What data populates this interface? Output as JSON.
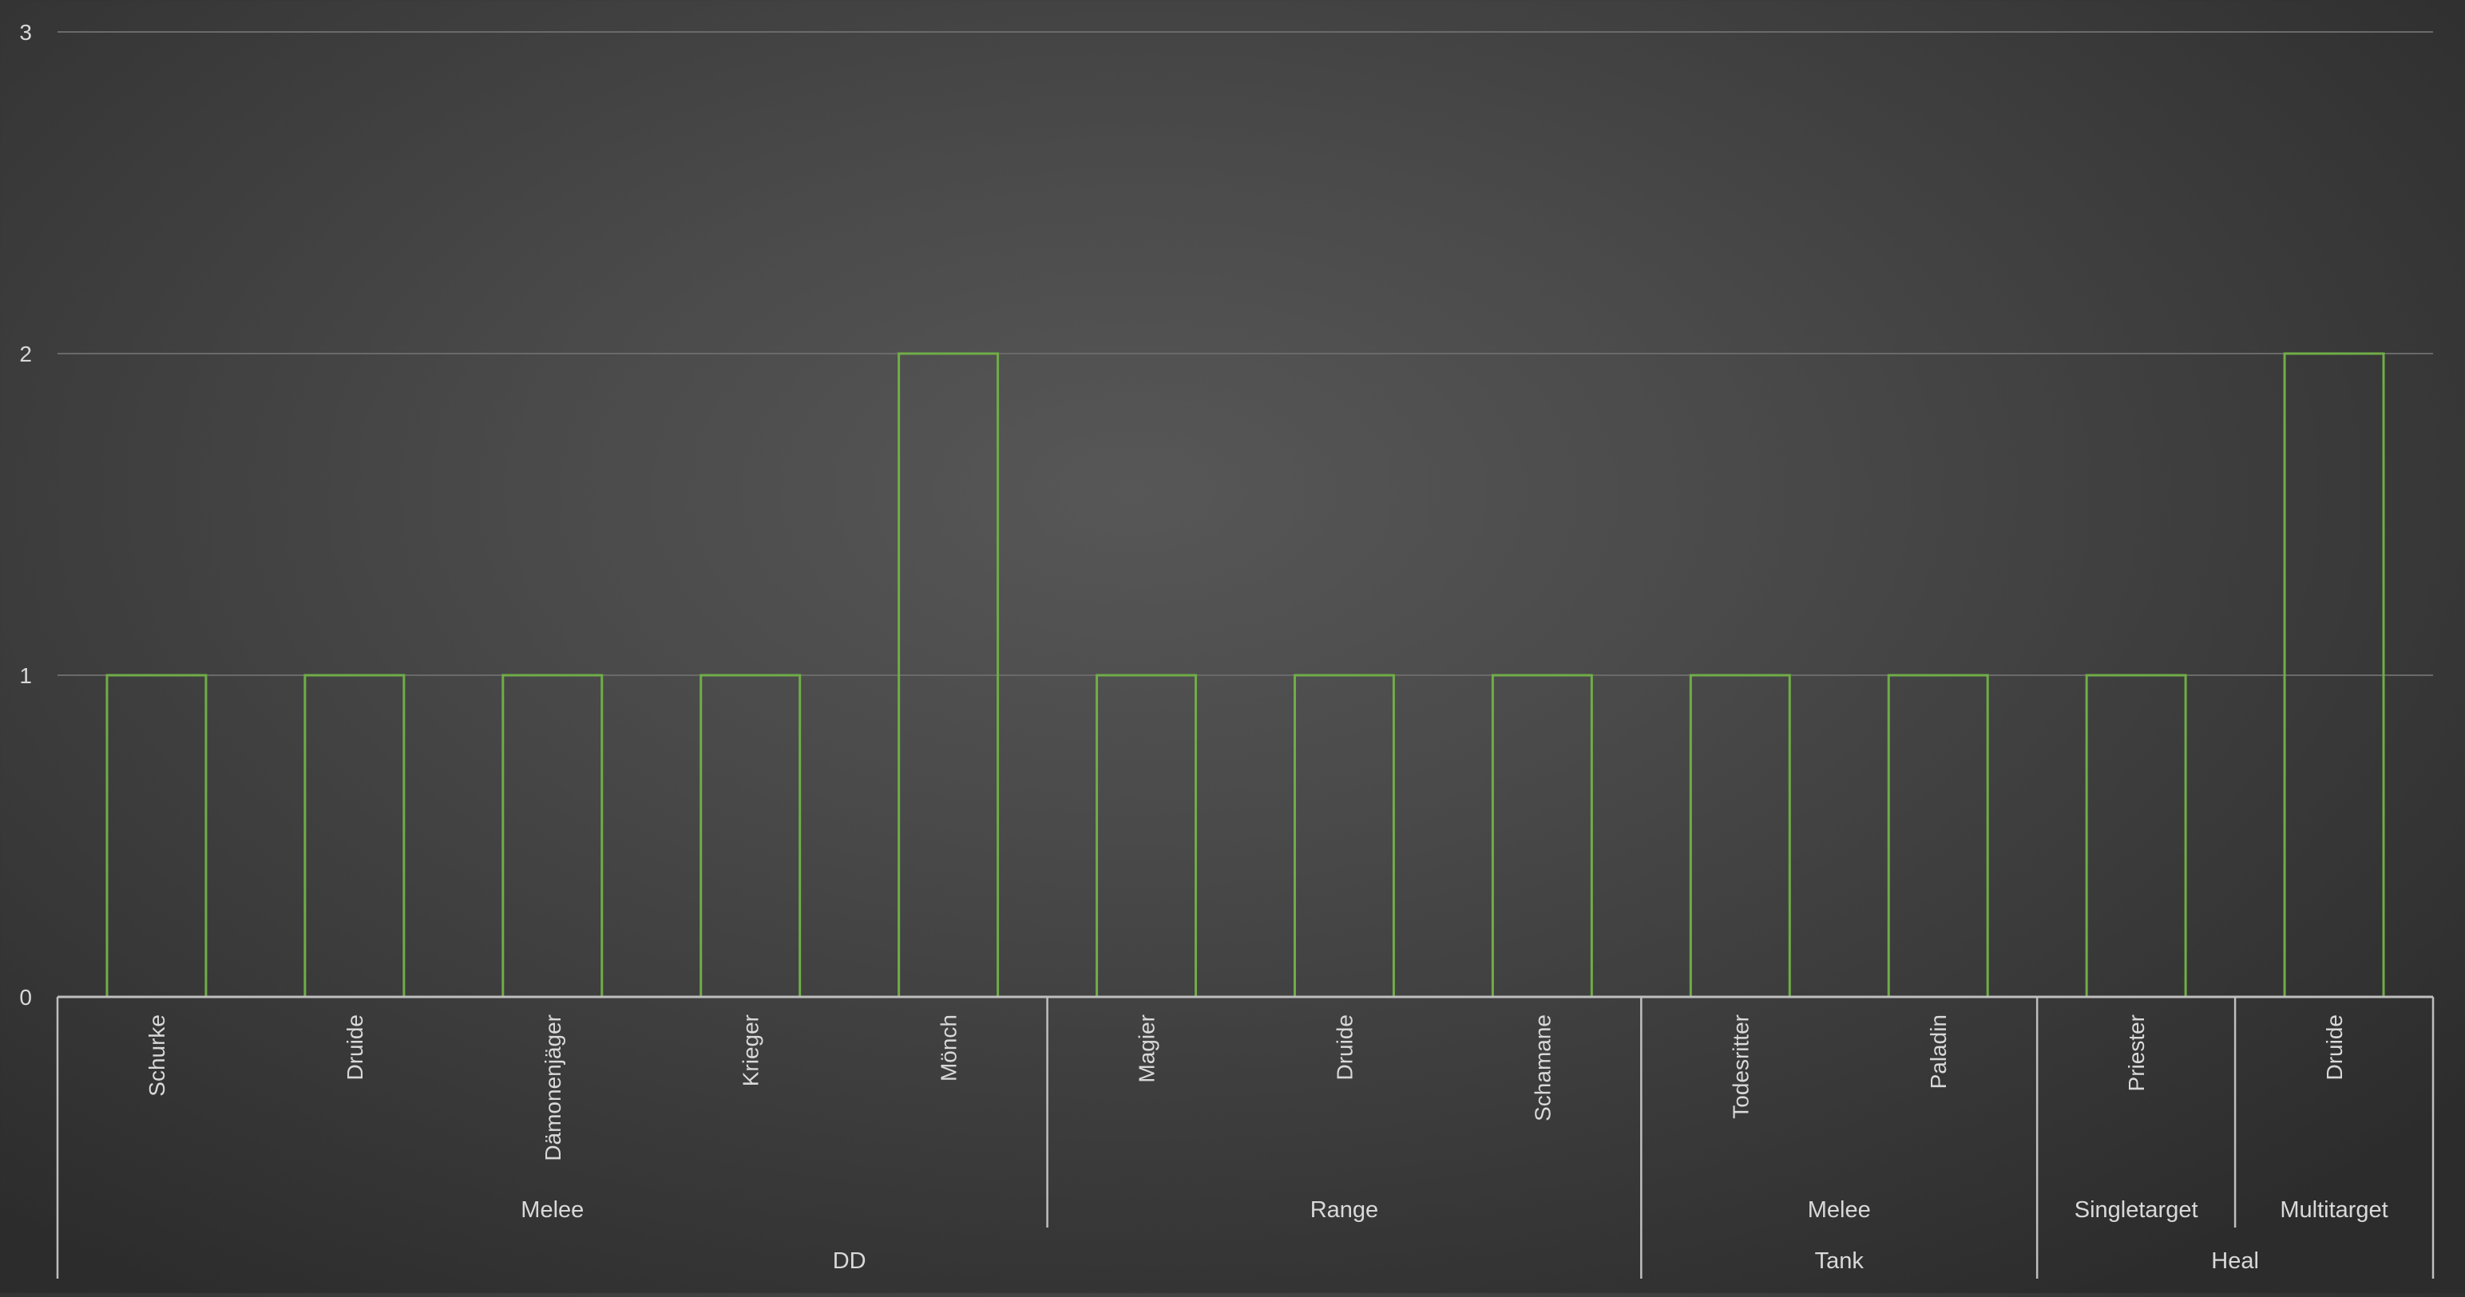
{
  "chart_data": {
    "type": "bar",
    "title": "",
    "xlabel": "",
    "ylabel": "",
    "ylim": [
      0,
      3
    ],
    "yticks": [
      "0",
      "1",
      "2",
      "3"
    ],
    "grid": true,
    "legend": "none",
    "bar_style": "outline",
    "colors": {
      "bar_outline": "#70ad47",
      "text": "#d9d9d9",
      "grid": "#6a6a6a",
      "axis": "#bfbfbf"
    },
    "categories": [
      "Schurke",
      "Druide",
      "Dämonenjäger",
      "Krieger",
      "Mönch",
      "Magier",
      "Druide",
      "Schamane",
      "Todesritter",
      "Paladin",
      "Priester",
      "Druide"
    ],
    "values": [
      1,
      1,
      1,
      1,
      2,
      1,
      1,
      1,
      1,
      1,
      1,
      2
    ],
    "subgroups": [
      {
        "label": "Melee",
        "start": 0,
        "end": 4
      },
      {
        "label": "Range",
        "start": 5,
        "end": 7
      },
      {
        "label": "Melee",
        "start": 8,
        "end": 9
      },
      {
        "label": "Singletarget",
        "start": 10,
        "end": 10
      },
      {
        "label": "Multitarget",
        "start": 11,
        "end": 11
      }
    ],
    "groups": [
      {
        "label": "DD",
        "start": 0,
        "end": 7
      },
      {
        "label": "Tank",
        "start": 8,
        "end": 9
      },
      {
        "label": "Heal",
        "start": 10,
        "end": 11
      }
    ]
  }
}
